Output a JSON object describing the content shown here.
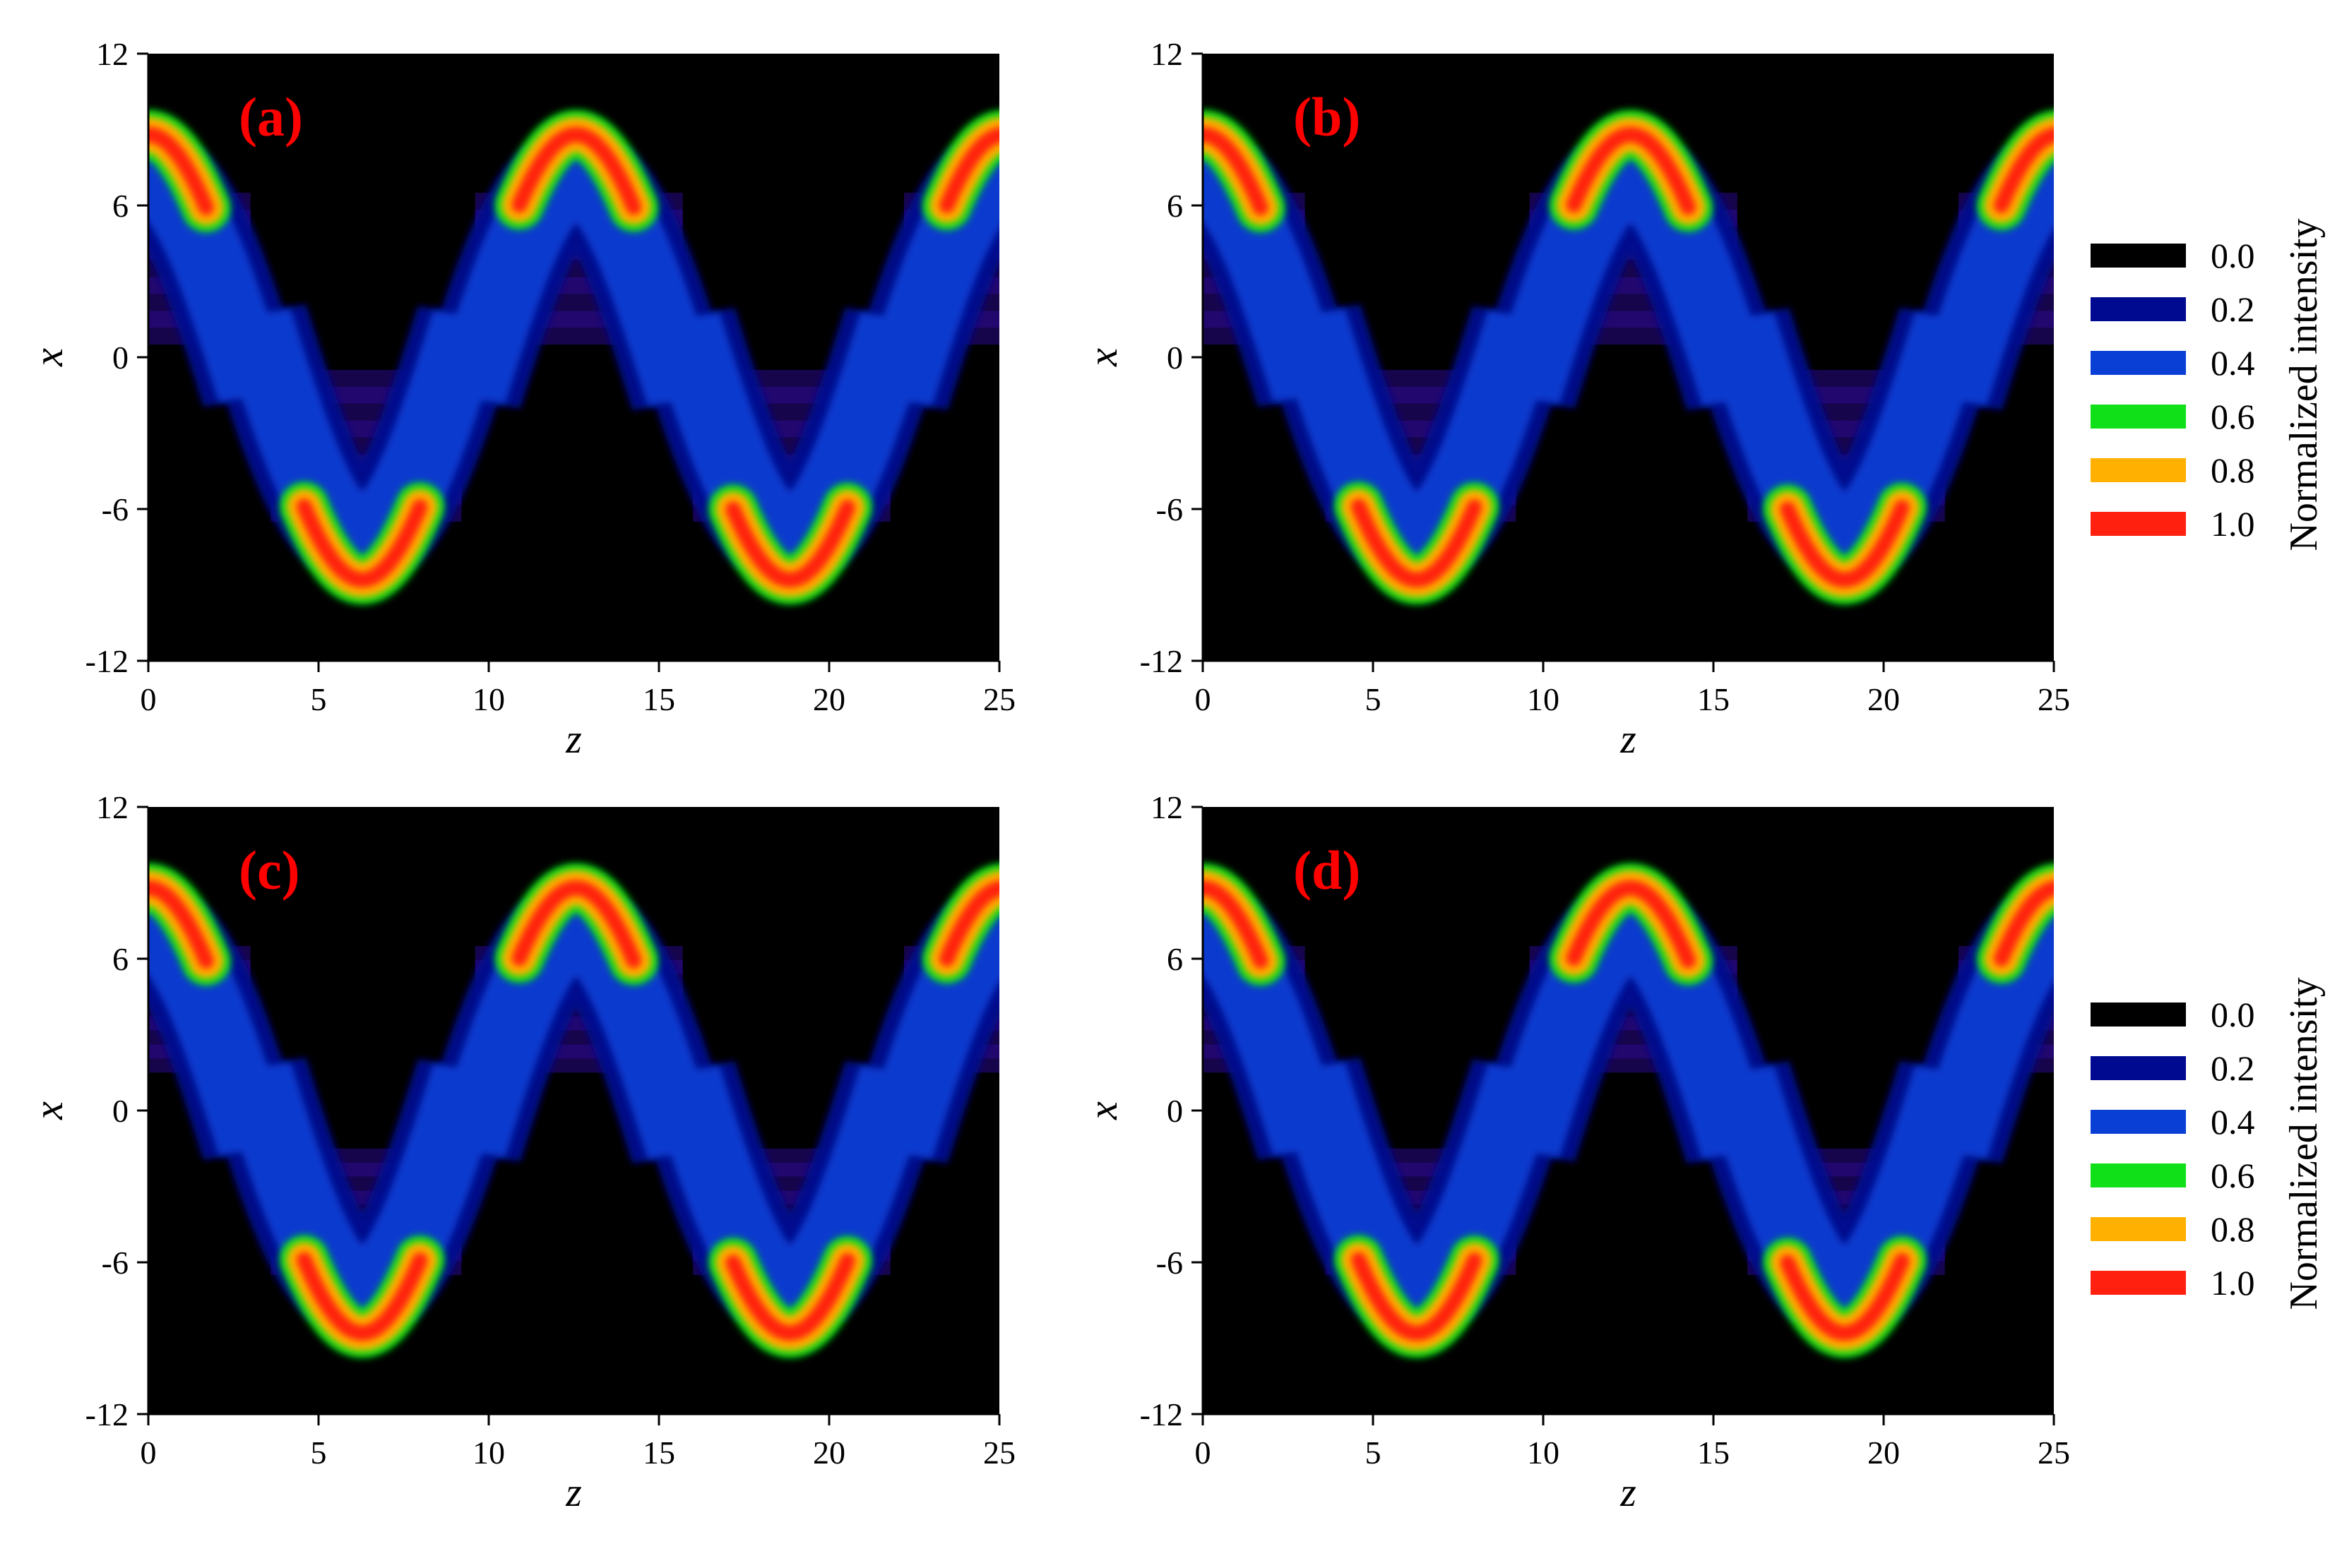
{
  "chart_data": {
    "type": "heatmap",
    "colorbar_title": "Normalized intensity",
    "colorbar": [
      {
        "value": "0.0",
        "color": "#000000"
      },
      {
        "value": "0.2",
        "color": "#000a90"
      },
      {
        "value": "0.4",
        "color": "#0a3fd6"
      },
      {
        "value": "0.6",
        "color": "#10e018"
      },
      {
        "value": "0.8",
        "color": "#ffb000"
      },
      {
        "value": "1.0",
        "color": "#ff2010"
      }
    ],
    "xlabel": "z",
    "ylabel": "x",
    "xlim": [
      0,
      25
    ],
    "ylim": [
      -12,
      12
    ],
    "xticks": [
      "0",
      "5",
      "10",
      "15",
      "20",
      "25"
    ],
    "yticks": [
      "12",
      "6",
      "0",
      "-6",
      "-12"
    ],
    "panels": [
      {
        "label": "(a)",
        "background_band": [
          0.5,
          6.5
        ]
      },
      {
        "label": "(b)",
        "background_band": [
          0.5,
          6.5
        ]
      },
      {
        "label": "(c)",
        "background_band": [
          1.5,
          6.5
        ]
      },
      {
        "label": "(d)",
        "background_band": [
          1.5,
          6.5
        ]
      }
    ],
    "beam": {
      "center_amplitude": 8.5,
      "period": 12.566,
      "peak_x": 9.0
    }
  }
}
